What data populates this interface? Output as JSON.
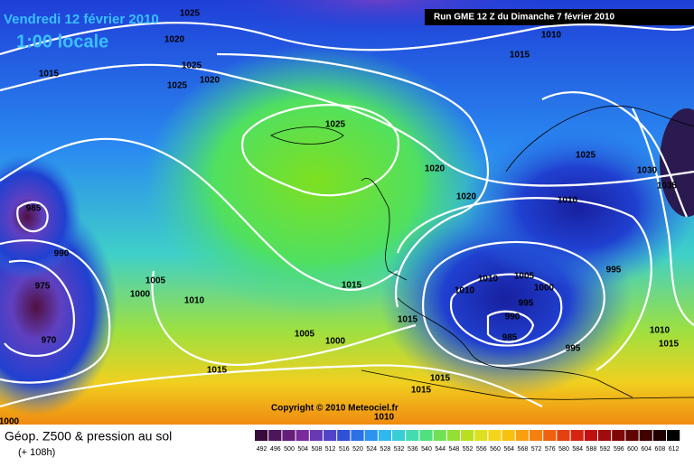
{
  "header": {
    "date": "Vendredi 12 février 2010",
    "time": "1:00 locale",
    "run": "Run GME 12 Z du Dimanche 7 février 2010"
  },
  "copyright": "Copyright © 2010 Meteociel.fr",
  "footer": {
    "title": "Géop. Z500 & pression au sol",
    "lead": "(+ 108h)"
  },
  "color_scale": [
    492,
    496,
    500,
    504,
    508,
    512,
    516,
    520,
    524,
    528,
    532,
    536,
    540,
    544,
    548,
    552,
    556,
    560,
    564,
    568,
    572,
    576,
    580,
    584,
    588,
    592,
    596,
    600,
    604,
    608,
    612
  ],
  "isobar_labels": [
    1025,
    1020,
    1025,
    1020,
    1025,
    1015,
    1025,
    1020,
    1020,
    1015,
    1010,
    1025,
    1030,
    1035,
    1010,
    995,
    985,
    990,
    975,
    970,
    1005,
    1000,
    1010,
    1015,
    1005,
    1000,
    1015,
    1015,
    1010,
    1005,
    1010,
    1000,
    995,
    990,
    985,
    995,
    1015,
    1015,
    1010,
    1010,
    1015,
    1000
  ]
}
